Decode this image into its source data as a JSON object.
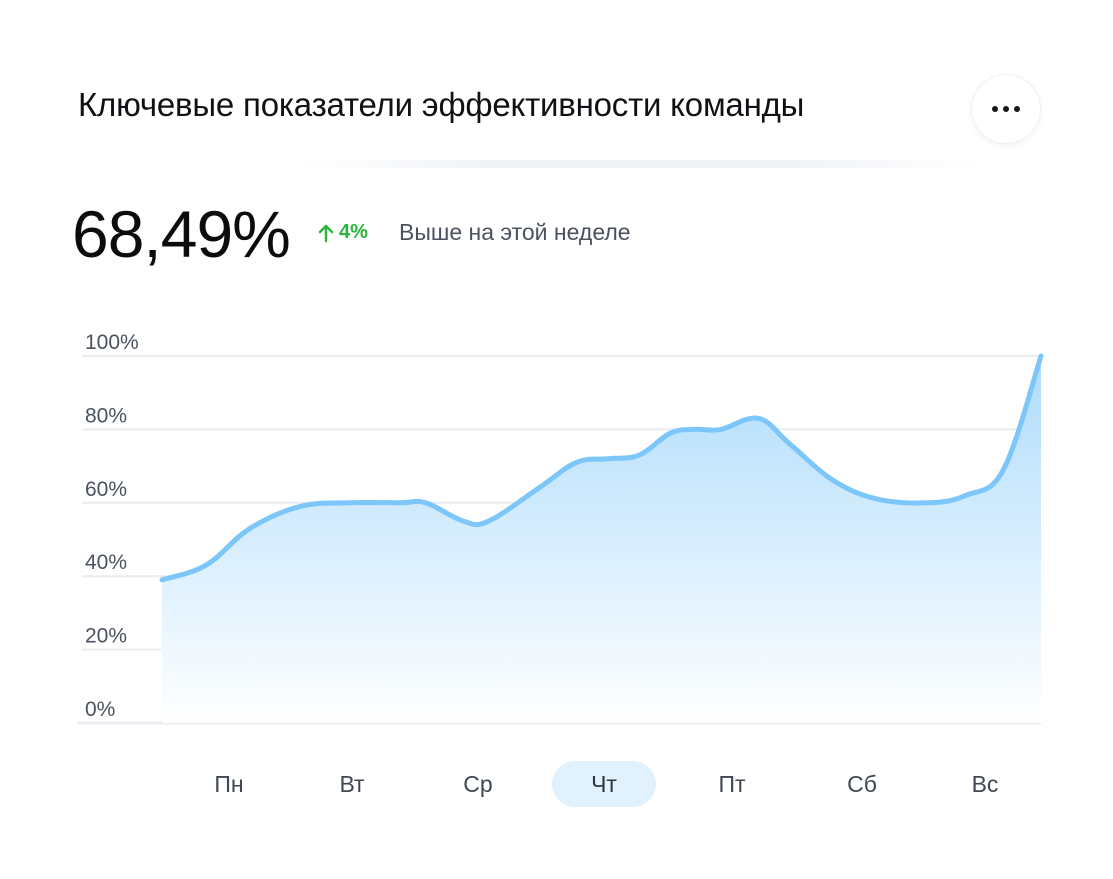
{
  "header": {
    "title": "Ключевые показатели эффективности команды",
    "more_icon": "more-horizontal-icon"
  },
  "kpi": {
    "value": "68,49%",
    "delta": "4%",
    "delta_icon": "arrow-up-icon",
    "delta_color": "#27b53b",
    "note": "Выше на этой неделе"
  },
  "colors": {
    "line": "#7cc6fa",
    "fill_top": "#aedcfc",
    "fill_bottom": "#ffffff",
    "grid": "#e9ecf0",
    "active_day_bg": "#e1f1fd"
  },
  "chart_data": {
    "type": "area",
    "y_ticks": [
      "100%",
      "80%",
      "60%",
      "40%",
      "20%",
      "0%"
    ],
    "ylim": [
      0,
      100
    ],
    "xlim": [
      0,
      7
    ],
    "categories": [
      "Пн",
      "Вт",
      "Ср",
      "Чт",
      "Пт",
      "Сб",
      "Вс"
    ],
    "selected_category": "Чт",
    "grid": true,
    "series": [
      {
        "x": [
          0,
          0.35,
          0.7,
          1.1,
          1.5,
          1.9,
          2.1,
          2.4,
          2.6,
          3.0,
          3.3,
          3.55,
          3.8,
          4.05,
          4.25,
          4.45,
          4.75,
          5.0,
          5.35,
          5.7,
          6.1,
          6.4,
          6.7,
          7.0
        ],
        "y": [
          39,
          43,
          53,
          59,
          60,
          60,
          60,
          55,
          55,
          64,
          71,
          72,
          73,
          79,
          80,
          80,
          83,
          76,
          66,
          61,
          60,
          62,
          69,
          100
        ]
      }
    ]
  }
}
